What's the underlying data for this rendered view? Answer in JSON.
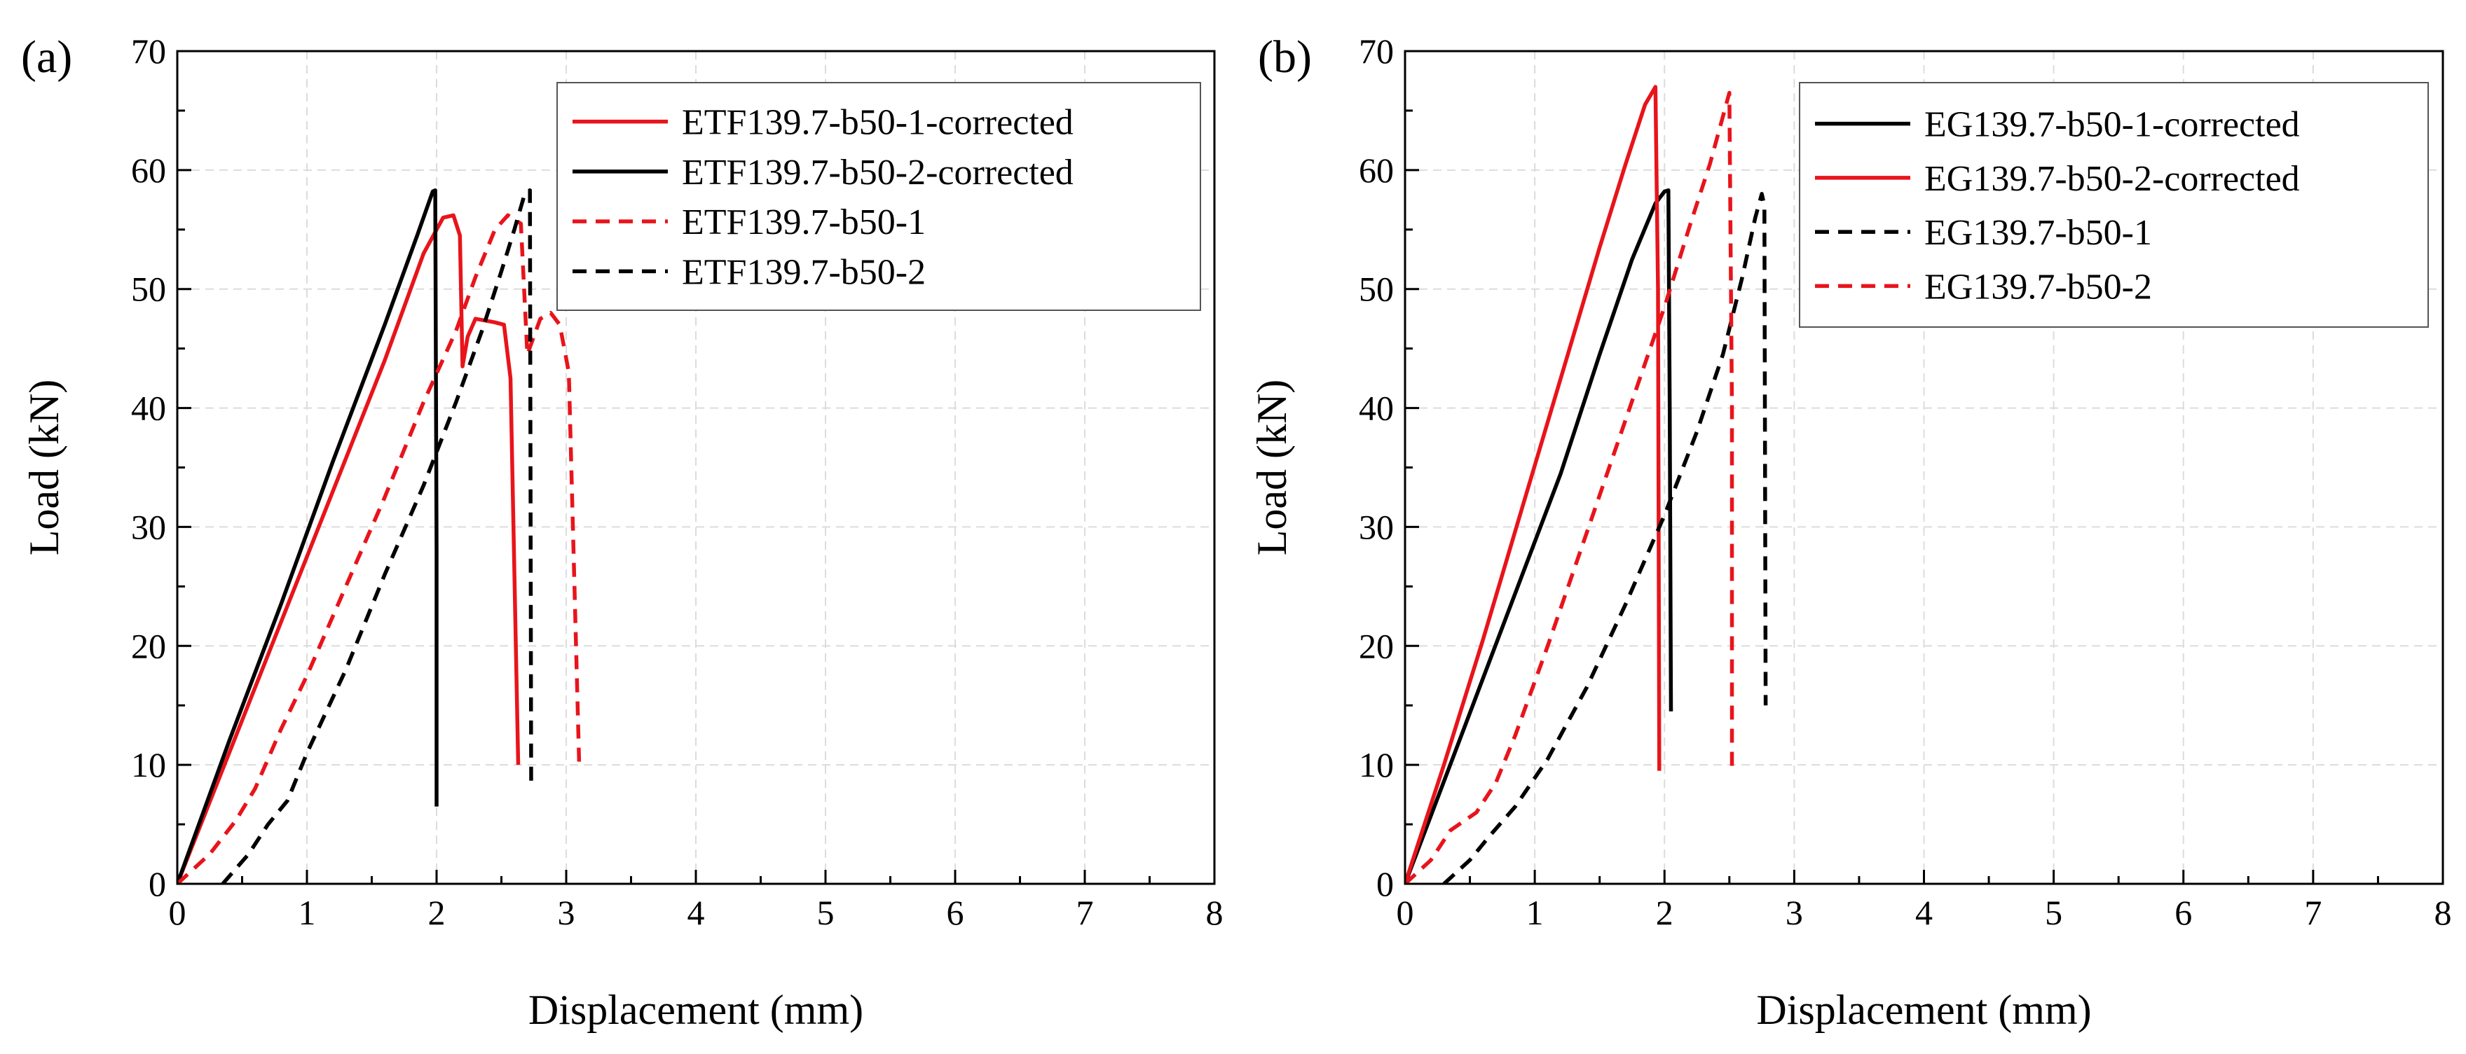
{
  "figure": {
    "panels": [
      "(a)",
      "(b)"
    ]
  },
  "chart_data": [
    {
      "type": "line",
      "panel_label": "(a)",
      "xlabel": "Displacement (mm)",
      "ylabel": "Load (kN)",
      "xlim": [
        0,
        8
      ],
      "ylim": [
        0,
        70
      ],
      "xticks": [
        "0",
        "1",
        "2",
        "3",
        "4",
        "5",
        "6",
        "7",
        "8"
      ],
      "yticks": [
        "0",
        "10",
        "20",
        "30",
        "40",
        "50",
        "60",
        "70"
      ],
      "grid": true,
      "legend_position": "top-right",
      "series": [
        {
          "name": "ETF139.7-b50-1-corrected",
          "color": "#e8141b",
          "dash": "solid",
          "points": [
            [
              0,
              0
            ],
            [
              0.4,
              11
            ],
            [
              0.8,
              22
            ],
            [
              1.2,
              33
            ],
            [
              1.6,
              44
            ],
            [
              1.9,
              53
            ],
            [
              2.05,
              56
            ],
            [
              2.13,
              56.2
            ],
            [
              2.18,
              54.5
            ],
            [
              2.2,
              43.5
            ],
            [
              2.24,
              46
            ],
            [
              2.3,
              47.5
            ],
            [
              2.45,
              47.2
            ],
            [
              2.52,
              47
            ],
            [
              2.57,
              42.5
            ],
            [
              2.63,
              10
            ]
          ]
        },
        {
          "name": "ETF139.7-b50-2-corrected",
          "color": "#000000",
          "dash": "solid",
          "points": [
            [
              0,
              0
            ],
            [
              0.4,
              12
            ],
            [
              0.8,
              23.5
            ],
            [
              1.2,
              35.5
            ],
            [
              1.6,
              47
            ],
            [
              1.85,
              54.5
            ],
            [
              1.97,
              58.2
            ],
            [
              1.99,
              58.3
            ],
            [
              2.0,
              28
            ],
            [
              2.0,
              6.5
            ]
          ]
        },
        {
          "name": "ETF139.7-b50-1",
          "color": "#e8141b",
          "dash": "dashed",
          "points": [
            [
              0,
              0
            ],
            [
              0.25,
              2.5
            ],
            [
              0.45,
              5.3
            ],
            [
              0.6,
              8
            ],
            [
              0.8,
              13
            ],
            [
              1.0,
              17.5
            ],
            [
              1.3,
              25
            ],
            [
              1.6,
              32.5
            ],
            [
              1.9,
              40.5
            ],
            [
              2.15,
              46.5
            ],
            [
              2.3,
              51
            ],
            [
              2.45,
              55
            ],
            [
              2.55,
              56.2
            ],
            [
              2.65,
              55.5
            ],
            [
              2.7,
              44.5
            ],
            [
              2.8,
              47.5
            ],
            [
              2.88,
              48
            ],
            [
              2.95,
              47
            ],
            [
              3.02,
              43
            ],
            [
              3.1,
              10
            ]
          ]
        },
        {
          "name": "ETF139.7-b50-2",
          "color": "#000000",
          "dash": "dashed",
          "points": [
            [
              0.35,
              0
            ],
            [
              0.55,
              2.5
            ],
            [
              0.7,
              5
            ],
            [
              0.85,
              7
            ],
            [
              1.0,
              11
            ],
            [
              1.3,
              18
            ],
            [
              1.6,
              26
            ],
            [
              1.9,
              33.5
            ],
            [
              2.15,
              40.5
            ],
            [
              2.35,
              46.5
            ],
            [
              2.5,
              51.5
            ],
            [
              2.6,
              55
            ],
            [
              2.68,
              58
            ],
            [
              2.72,
              58.3
            ],
            [
              2.73,
              8
            ]
          ]
        }
      ]
    },
    {
      "type": "line",
      "panel_label": "(b)",
      "xlabel": "Displacement (mm)",
      "ylabel": "Load (kN)",
      "xlim": [
        0,
        8
      ],
      "ylim": [
        0,
        70
      ],
      "xticks": [
        "0",
        "1",
        "2",
        "3",
        "4",
        "5",
        "6",
        "7",
        "8"
      ],
      "yticks": [
        "0",
        "10",
        "20",
        "30",
        "40",
        "50",
        "60",
        "70"
      ],
      "grid": true,
      "legend_position": "top-right",
      "series": [
        {
          "name": "EG139.7-b50-1-corrected",
          "color": "#000000",
          "dash": "solid",
          "points": [
            [
              0,
              0
            ],
            [
              0.4,
              11.5
            ],
            [
              0.8,
              23
            ],
            [
              1.2,
              34.5
            ],
            [
              1.5,
              44.5
            ],
            [
              1.75,
              52.5
            ],
            [
              1.93,
              57.2
            ],
            [
              2.0,
              58.2
            ],
            [
              2.03,
              58.3
            ],
            [
              2.04,
              40
            ],
            [
              2.05,
              14.5
            ]
          ]
        },
        {
          "name": "EG139.7-b50-2-corrected",
          "color": "#e8141b",
          "dash": "solid",
          "points": [
            [
              0,
              0
            ],
            [
              0.3,
              10
            ],
            [
              0.6,
              20.5
            ],
            [
              0.9,
              31.5
            ],
            [
              1.2,
              42.5
            ],
            [
              1.5,
              53.5
            ],
            [
              1.7,
              60.5
            ],
            [
              1.85,
              65.5
            ],
            [
              1.93,
              67
            ],
            [
              1.95,
              50
            ],
            [
              1.96,
              9.5
            ]
          ]
        },
        {
          "name": "EG139.7-b50-1",
          "color": "#000000",
          "dash": "dashed",
          "points": [
            [
              0.3,
              0
            ],
            [
              0.5,
              2
            ],
            [
              0.65,
              4
            ],
            [
              0.85,
              6.5
            ],
            [
              1.1,
              10.5
            ],
            [
              1.4,
              16.5
            ],
            [
              1.7,
              23.5
            ],
            [
              2.0,
              31
            ],
            [
              2.25,
              38
            ],
            [
              2.45,
              44.5
            ],
            [
              2.6,
              51
            ],
            [
              2.7,
              56
            ],
            [
              2.75,
              58
            ],
            [
              2.77,
              57
            ],
            [
              2.78,
              15
            ]
          ]
        },
        {
          "name": "EG139.7-b50-2",
          "color": "#e8141b",
          "dash": "dashed",
          "points": [
            [
              0,
              0
            ],
            [
              0.2,
              2
            ],
            [
              0.35,
              4.5
            ],
            [
              0.55,
              6
            ],
            [
              0.7,
              8.5
            ],
            [
              0.85,
              12.5
            ],
            [
              1.1,
              20
            ],
            [
              1.4,
              29.5
            ],
            [
              1.7,
              39
            ],
            [
              2.0,
              48.5
            ],
            [
              2.2,
              55.5
            ],
            [
              2.35,
              60.5
            ],
            [
              2.45,
              64.5
            ],
            [
              2.5,
              66.5
            ],
            [
              2.52,
              40
            ],
            [
              2.52,
              9.5
            ]
          ]
        }
      ]
    }
  ]
}
